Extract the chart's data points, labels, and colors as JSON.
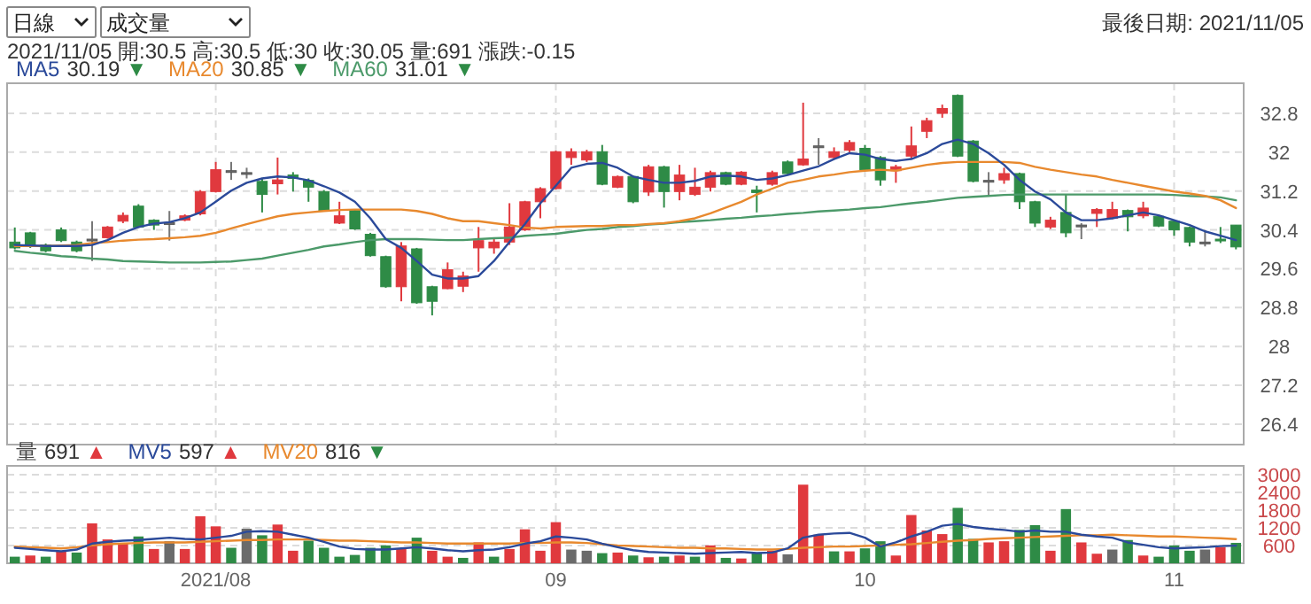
{
  "chart_data": [
    {
      "type": "candlestick",
      "subtitle": "2021/11/05 開:30.5 高:30.5 低:30 收:30.05 量:691 漲跌:-0.15",
      "annotations": [
        "日線",
        "成交量",
        "最後日期: 2021/11/05",
        "30.19 ▼",
        "30.85 ▼",
        "31.01 ▼"
      ],
      "categories": [
        null,
        null,
        null,
        null,
        null,
        null,
        null,
        null,
        null,
        null,
        null,
        null,
        null,
        "2021/08",
        null,
        null,
        null,
        null,
        null,
        null,
        null,
        null,
        null,
        null,
        null,
        null,
        null,
        null,
        null,
        null,
        null,
        null,
        null,
        null,
        null,
        "09",
        null,
        null,
        null,
        null,
        null,
        null,
        null,
        null,
        null,
        null,
        null,
        null,
        null,
        null,
        null,
        null,
        null,
        null,
        null,
        "10",
        null,
        null,
        null,
        null,
        null,
        null,
        null,
        null,
        null,
        null,
        null,
        null,
        null,
        null,
        null,
        null,
        null,
        null,
        null,
        "11",
        null,
        null,
        null,
        null
      ],
      "ohlc": [
        [
          30.15,
          30.45,
          30.0,
          30.03
        ],
        [
          30.34,
          30.36,
          30.03,
          30.06
        ],
        [
          30.09,
          30.12,
          29.94,
          29.97
        ],
        [
          30.4,
          30.45,
          30.15,
          30.18
        ],
        [
          30.15,
          30.18,
          29.94,
          29.97
        ],
        [
          30.21,
          30.58,
          29.76,
          30.21
        ],
        [
          30.24,
          30.48,
          30.22,
          30.46
        ],
        [
          30.58,
          30.76,
          30.54,
          30.7
        ],
        [
          30.89,
          30.93,
          30.44,
          30.46
        ],
        [
          30.6,
          30.62,
          30.4,
          30.5
        ],
        [
          30.55,
          30.79,
          30.18,
          30.55
        ],
        [
          30.6,
          30.72,
          30.58,
          30.69
        ],
        [
          30.73,
          31.22,
          30.7,
          31.19
        ],
        [
          31.19,
          31.8,
          31.17,
          31.64
        ],
        [
          31.62,
          31.8,
          31.43,
          31.62
        ],
        [
          31.58,
          31.68,
          31.46,
          31.58
        ],
        [
          31.4,
          31.47,
          30.76,
          31.13
        ],
        [
          31.35,
          31.89,
          31.13,
          31.43
        ],
        [
          31.53,
          31.59,
          31.19,
          31.46
        ],
        [
          31.42,
          31.46,
          30.98,
          31.28
        ],
        [
          31.19,
          31.22,
          30.78,
          30.8
        ],
        [
          30.54,
          30.98,
          30.52,
          30.69
        ],
        [
          30.8,
          30.83,
          30.4,
          30.42
        ],
        [
          30.31,
          30.34,
          29.85,
          29.87
        ],
        [
          29.85,
          29.87,
          29.21,
          29.23
        ],
        [
          29.23,
          30.15,
          28.93,
          30.07
        ],
        [
          30.01,
          30.03,
          28.88,
          28.9
        ],
        [
          29.23,
          29.25,
          28.64,
          28.93
        ],
        [
          29.19,
          29.73,
          29.18,
          29.58
        ],
        [
          29.24,
          29.54,
          29.12,
          29.45
        ],
        [
          30.03,
          30.46,
          29.54,
          30.18
        ],
        [
          30.03,
          30.21,
          29.91,
          30.15
        ],
        [
          30.15,
          30.95,
          30.09,
          30.46
        ],
        [
          30.4,
          31.0,
          30.38,
          30.98
        ],
        [
          30.98,
          31.28,
          30.64,
          31.25
        ],
        [
          31.25,
          32.03,
          31.23,
          32.01
        ],
        [
          31.89,
          32.08,
          31.74,
          32.01
        ],
        [
          31.84,
          32.05,
          31.8,
          32.01
        ],
        [
          32.01,
          32.15,
          31.32,
          31.34
        ],
        [
          31.28,
          31.52,
          31.26,
          31.5
        ],
        [
          31.5,
          31.52,
          30.95,
          30.98
        ],
        [
          31.18,
          31.74,
          31.1,
          31.7
        ],
        [
          31.7,
          31.72,
          30.86,
          31.19
        ],
        [
          31.19,
          31.74,
          31.01,
          31.53
        ],
        [
          31.13,
          31.68,
          31.1,
          31.28
        ],
        [
          31.28,
          31.62,
          31.19,
          31.58
        ],
        [
          31.58,
          31.6,
          31.32,
          31.34
        ],
        [
          31.34,
          31.61,
          31.32,
          31.59
        ],
        [
          31.22,
          31.31,
          30.76,
          31.17
        ],
        [
          31.34,
          31.62,
          31.31,
          31.58
        ],
        [
          31.8,
          31.83,
          31.53,
          31.56
        ],
        [
          31.74,
          33.02,
          31.72,
          31.86
        ],
        [
          32.13,
          32.29,
          31.74,
          32.13
        ],
        [
          31.89,
          32.1,
          31.86,
          32.01
        ],
        [
          32.04,
          32.25,
          32.0,
          32.2
        ],
        [
          32.08,
          32.15,
          31.62,
          31.64
        ],
        [
          31.89,
          31.92,
          31.31,
          31.43
        ],
        [
          31.62,
          31.74,
          31.37,
          31.7
        ],
        [
          31.92,
          32.53,
          31.86,
          32.13
        ],
        [
          32.43,
          32.71,
          32.29,
          32.65
        ],
        [
          32.8,
          32.98,
          32.71,
          32.9
        ],
        [
          33.17,
          33.19,
          31.9,
          31.92
        ],
        [
          32.23,
          32.25,
          31.38,
          31.4
        ],
        [
          31.42,
          31.59,
          31.1,
          31.42
        ],
        [
          31.43,
          31.68,
          31.35,
          31.56
        ],
        [
          31.56,
          31.58,
          30.83,
          30.98
        ],
        [
          30.98,
          31.0,
          30.46,
          30.54
        ],
        [
          30.46,
          30.67,
          30.42,
          30.6
        ],
        [
          30.76,
          31.13,
          30.25,
          30.34
        ],
        [
          30.5,
          30.54,
          30.21,
          30.5
        ],
        [
          30.74,
          30.85,
          30.46,
          30.82
        ],
        [
          30.64,
          30.98,
          30.62,
          30.82
        ],
        [
          30.8,
          30.82,
          30.37,
          30.67
        ],
        [
          30.69,
          30.98,
          30.64,
          30.85
        ],
        [
          30.68,
          30.7,
          30.46,
          30.48
        ],
        [
          30.58,
          30.6,
          30.28,
          30.4
        ],
        [
          30.45,
          30.47,
          30.06,
          30.15
        ],
        [
          30.15,
          30.4,
          30.06,
          30.15
        ],
        [
          30.21,
          30.46,
          30.13,
          30.2
        ],
        [
          30.5,
          30.5,
          30.0,
          30.05
        ]
      ],
      "series": [
        {
          "name": "MA5",
          "type": "line",
          "color": "#2b4a9a",
          "values": [
            30.09,
            30.08,
            30.07,
            30.07,
            30.07,
            30.09,
            30.19,
            30.34,
            30.46,
            30.53,
            30.56,
            30.64,
            30.76,
            30.98,
            31.21,
            31.37,
            31.46,
            31.5,
            31.48,
            31.42,
            31.3,
            31.17,
            30.98,
            30.64,
            30.21,
            30.03,
            29.76,
            29.48,
            29.4,
            29.4,
            29.45,
            29.76,
            30.15,
            30.52,
            30.95,
            31.31,
            31.68,
            31.76,
            31.78,
            31.68,
            31.5,
            31.43,
            31.37,
            31.37,
            31.41,
            31.5,
            31.52,
            31.5,
            31.43,
            31.46,
            31.53,
            31.62,
            31.71,
            31.86,
            31.98,
            31.95,
            31.86,
            31.82,
            31.86,
            31.98,
            32.17,
            32.26,
            32.17,
            31.98,
            31.74,
            31.43,
            31.19,
            31.03,
            30.76,
            30.6,
            30.6,
            30.64,
            30.7,
            30.76,
            30.7,
            30.6,
            30.5,
            30.37,
            30.28,
            30.19
          ]
        },
        {
          "name": "MA20",
          "type": "line",
          "color": "#e8892e",
          "values": [
            30.07,
            30.07,
            30.07,
            30.08,
            30.09,
            30.13,
            30.15,
            30.18,
            30.2,
            30.21,
            30.23,
            30.25,
            30.28,
            30.34,
            30.43,
            30.52,
            30.6,
            30.68,
            30.73,
            30.76,
            30.79,
            30.81,
            30.82,
            30.82,
            30.82,
            30.82,
            30.79,
            30.73,
            30.64,
            30.58,
            30.58,
            30.54,
            30.5,
            30.45,
            30.43,
            30.46,
            30.47,
            30.48,
            30.48,
            30.5,
            30.5,
            30.52,
            30.54,
            30.58,
            30.64,
            30.74,
            30.86,
            30.98,
            31.13,
            31.25,
            31.37,
            31.43,
            31.5,
            31.54,
            31.59,
            31.62,
            31.64,
            31.62,
            31.68,
            31.74,
            31.78,
            31.8,
            31.8,
            31.8,
            31.8,
            31.78,
            31.7,
            31.64,
            31.59,
            31.54,
            31.5,
            31.43,
            31.37,
            31.31,
            31.25,
            31.19,
            31.15,
            31.1,
            31.01,
            30.85
          ]
        },
        {
          "name": "MA60",
          "type": "line",
          "color": "#4c9a6a",
          "values": [
            29.97,
            29.93,
            29.9,
            29.86,
            29.84,
            29.81,
            29.79,
            29.76,
            29.75,
            29.74,
            29.73,
            29.73,
            29.73,
            29.74,
            29.75,
            29.78,
            29.81,
            29.87,
            29.93,
            29.99,
            30.06,
            30.1,
            30.15,
            30.19,
            30.21,
            30.21,
            30.21,
            30.2,
            30.19,
            30.19,
            30.21,
            30.23,
            30.24,
            30.28,
            30.3,
            30.32,
            30.36,
            30.4,
            30.42,
            30.46,
            30.48,
            30.51,
            30.53,
            30.56,
            30.58,
            30.6,
            30.63,
            30.65,
            30.68,
            30.7,
            30.73,
            30.75,
            30.78,
            30.8,
            30.82,
            30.85,
            30.87,
            30.91,
            30.95,
            30.98,
            31.02,
            31.06,
            31.08,
            31.1,
            31.12,
            31.13,
            31.13,
            31.13,
            31.13,
            31.13,
            31.13,
            31.13,
            31.13,
            31.13,
            31.13,
            31.12,
            31.1,
            31.09,
            31.07,
            31.01
          ]
        }
      ],
      "ylim": [
        25.98,
        33.42
      ],
      "yticks": [
        26.4,
        27.2,
        28.0,
        28.8,
        29.6,
        30.4,
        31.2,
        32.0,
        32.8
      ],
      "grid": true,
      "tick_labels": "y",
      "legend": "top left"
    },
    {
      "type": "bar",
      "annotations": [
        "691 ▲",
        "597 ▲",
        "816 ▼"
      ],
      "categories": [
        null,
        null,
        null,
        null,
        null,
        null,
        null,
        null,
        null,
        null,
        null,
        null,
        null,
        "2021/08",
        null,
        null,
        null,
        null,
        null,
        null,
        null,
        null,
        null,
        null,
        null,
        null,
        null,
        null,
        null,
        null,
        null,
        null,
        null,
        null,
        null,
        "09",
        null,
        null,
        null,
        null,
        null,
        null,
        null,
        null,
        null,
        null,
        null,
        null,
        null,
        null,
        null,
        null,
        null,
        null,
        null,
        "10",
        null,
        null,
        null,
        null,
        null,
        null,
        null,
        null,
        null,
        null,
        null,
        null,
        null,
        null,
        null,
        null,
        null,
        null,
        null,
        "11",
        null,
        null,
        null,
        null
      ],
      "series": [
        {
          "name": "量",
          "type": "bar",
          "values": [
            222,
            262,
            222,
            403,
            363,
            1351,
            807,
            666,
            908,
            484,
            746,
            484,
            1593,
            1250,
            524,
            1170,
            948,
            1311,
            424,
            766,
            524,
            222,
            282,
            524,
            605,
            484,
            867,
            424,
            222,
            182,
            706,
            222,
            484,
            1150,
            424,
            1392,
            464,
            424,
            343,
            363,
            262,
            202,
            222,
            262,
            222,
            605,
            182,
            161,
            343,
            424,
            303,
            2662,
            968,
            403,
            403,
            504,
            746,
            262,
            1634,
            1109,
            988,
            1876,
            827,
            706,
            746,
            1130,
            1291,
            424,
            1835,
            706,
            323,
            464,
            787,
            262,
            222,
            605,
            424,
            464,
            545,
            691
          ],
          "colors": [
            "#2e8b46",
            "#e0393e",
            "#2e8b46",
            "#e0393e",
            "#2e8b46",
            "#e0393e",
            "#e0393e",
            "#e0393e",
            "#2e8b46",
            "#e0393e",
            "#6b6b6b",
            "#e0393e",
            "#e0393e",
            "#e0393e",
            "#2e8b46",
            "#6b6b6b",
            "#2e8b46",
            "#e0393e",
            "#e0393e",
            "#2e8b46",
            "#2e8b46",
            "#2e8b46",
            "#2e8b46",
            "#2e8b46",
            "#2e8b46",
            "#e0393e",
            "#2e8b46",
            "#e0393e",
            "#e0393e",
            "#2e8b46",
            "#e0393e",
            "#2e8b46",
            "#e0393e",
            "#e0393e",
            "#e0393e",
            "#e0393e",
            "#6b6b6b",
            "#6b6b6b",
            "#2e8b46",
            "#e0393e",
            "#2e8b46",
            "#e0393e",
            "#2e8b46",
            "#e0393e",
            "#2e8b46",
            "#e0393e",
            "#2e8b46",
            "#e0393e",
            "#2e8b46",
            "#e0393e",
            "#6b6b6b",
            "#e0393e",
            "#e0393e",
            "#2e8b46",
            "#e0393e",
            "#2e8b46",
            "#2e8b46",
            "#e0393e",
            "#e0393e",
            "#e0393e",
            "#e0393e",
            "#2e8b46",
            "#2e8b46",
            "#e0393e",
            "#e0393e",
            "#2e8b46",
            "#2e8b46",
            "#e0393e",
            "#2e8b46",
            "#e0393e",
            "#e0393e",
            "#6b6b6b",
            "#2e8b46",
            "#e0393e",
            "#2e8b46",
            "#2e8b46",
            "#2e8b46",
            "#6b6b6b",
            "#e0393e",
            "#2e8b46"
          ]
        },
        {
          "name": "MV5",
          "type": "line",
          "color": "#2b4a9a",
          "values": [
            524,
            484,
            444,
            403,
            464,
            666,
            726,
            766,
            787,
            827,
            867,
            827,
            807,
            867,
            928,
            1069,
            1089,
            1069,
            968,
            867,
            726,
            565,
            484,
            464,
            464,
            504,
            545,
            504,
            444,
            403,
            444,
            464,
            545,
            666,
            746,
            908,
            867,
            807,
            666,
            545,
            444,
            383,
            363,
            343,
            323,
            343,
            363,
            383,
            343,
            363,
            504,
            867,
            968,
            1008,
            1029,
            867,
            565,
            706,
            908,
            1069,
            1271,
            1331,
            1230,
            1170,
            1130,
            1069,
            1109,
            1069,
            1069,
            968,
            908,
            867,
            706,
            625,
            545,
            504,
            524,
            545,
            580,
            597
          ]
        },
        {
          "name": "MV20",
          "type": "line",
          "color": "#e8892e",
          "values": [
            565,
            545,
            524,
            504,
            545,
            605,
            645,
            666,
            686,
            706,
            706,
            706,
            726,
            746,
            766,
            787,
            787,
            807,
            807,
            807,
            787,
            766,
            766,
            746,
            726,
            706,
            706,
            686,
            666,
            666,
            666,
            666,
            666,
            686,
            686,
            706,
            706,
            686,
            645,
            605,
            585,
            565,
            545,
            524,
            524,
            504,
            504,
            484,
            464,
            464,
            484,
            524,
            545,
            565,
            565,
            585,
            605,
            625,
            645,
            686,
            726,
            766,
            787,
            827,
            847,
            867,
            888,
            908,
            928,
            948,
            948,
            968,
            948,
            928,
            908,
            908,
            888,
            867,
            847,
            816
          ]
        }
      ],
      "ylim": [
        0,
        3300
      ],
      "yticks": [
        600,
        1200,
        1800,
        2400,
        3000
      ],
      "grid": true,
      "legend": "top left"
    }
  ]
}
